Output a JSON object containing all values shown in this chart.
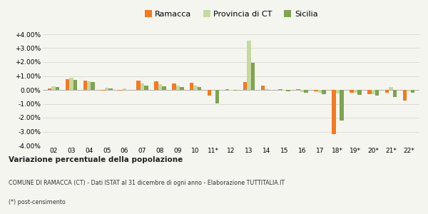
{
  "years": [
    "02",
    "03",
    "04",
    "05",
    "06",
    "07",
    "08",
    "09",
    "10",
    "11*",
    "12",
    "13",
    "14",
    "15",
    "16",
    "17",
    "18*",
    "19*",
    "20*",
    "21*",
    "22*"
  ],
  "ramacca": [
    0.08,
    0.75,
    0.65,
    -0.05,
    -0.05,
    0.65,
    0.6,
    0.45,
    0.5,
    -0.4,
    0.05,
    0.55,
    0.3,
    0.05,
    0.05,
    -0.1,
    -3.2,
    -0.2,
    -0.3,
    -0.2,
    -0.75
  ],
  "provincia_ct": [
    0.25,
    0.85,
    0.6,
    0.15,
    0.1,
    0.45,
    0.4,
    0.3,
    0.3,
    0.0,
    -0.05,
    3.55,
    0.05,
    -0.05,
    -0.15,
    -0.2,
    -0.25,
    -0.2,
    -0.3,
    0.2,
    -0.1
  ],
  "sicilia": [
    0.18,
    0.7,
    0.55,
    0.12,
    0.02,
    0.3,
    0.28,
    0.22,
    0.18,
    -0.95,
    -0.05,
    1.95,
    0.0,
    -0.1,
    -0.2,
    -0.3,
    -2.2,
    -0.38,
    -0.42,
    -0.52,
    -0.22
  ],
  "color_ramacca": "#f47a20",
  "color_provincia": "#c5d9a0",
  "color_sicilia": "#7da452",
  "footer_bold": "Variazione percentuale della popolazione",
  "footer1": "COMUNE DI RAMACCA (CT) - Dati ISTAT al 31 dicembre di ogni anno - Elaborazione TUTTITALIA.IT",
  "footer2": "(*) post-censimento",
  "ylim": [
    -4.0,
    4.0
  ],
  "yticks": [
    -4.0,
    -3.0,
    -2.0,
    -1.0,
    0.0,
    1.0,
    2.0,
    3.0,
    4.0
  ],
  "legend_labels": [
    "Ramacca",
    "Provincia di CT",
    "Sicilia"
  ],
  "bg_color": "#f5f5f0"
}
